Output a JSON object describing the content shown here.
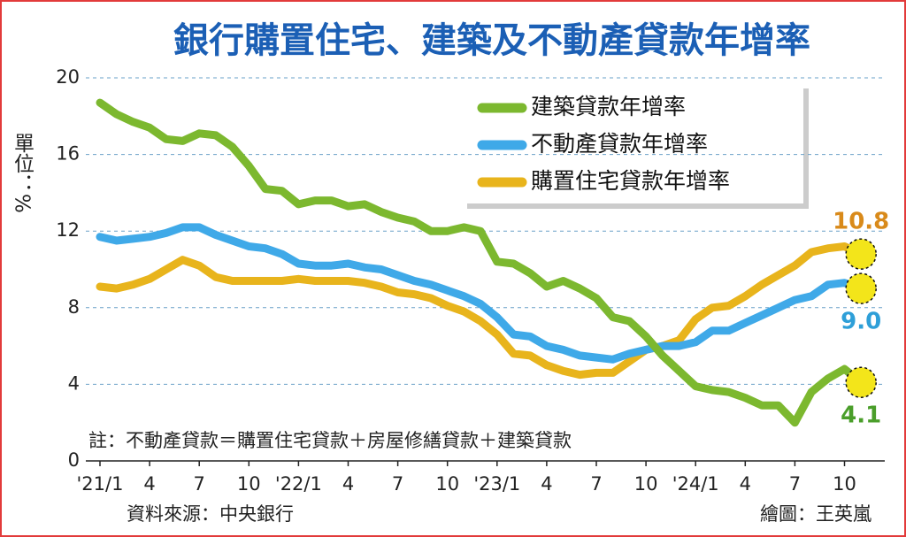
{
  "chart_data": {
    "type": "line",
    "title": "銀行購置住宅、建築及不動產貸款年增率",
    "y_label": "單位：%",
    "note": "註：不動產貸款＝購置住宅貸款＋房屋修繕貸款＋建築貸款",
    "source": "資料來源：中央銀行",
    "credit": "繪圖：王英嵐",
    "categories": [
      "'21/1",
      null,
      null,
      "4",
      null,
      null,
      "7",
      null,
      null,
      "10",
      null,
      null,
      "'22/1",
      null,
      null,
      "4",
      null,
      null,
      "7",
      null,
      null,
      "10",
      null,
      null,
      "'23/1",
      null,
      null,
      "4",
      null,
      null,
      "7",
      null,
      null,
      "10",
      null,
      null,
      "'24/1",
      null,
      null,
      "4",
      null,
      null,
      "7",
      null,
      null,
      "10",
      null
    ],
    "ylim": [
      0,
      20
    ],
    "yticks": [
      0,
      4,
      8,
      12,
      16,
      20
    ],
    "grid": true,
    "legend": "top-right",
    "series": [
      {
        "name": "建築貸款年增率",
        "color": "#7cb82f",
        "label_color": "#4a9e2a",
        "values": [
          18.7,
          18.1,
          17.7,
          17.4,
          16.8,
          16.7,
          17.1,
          17.0,
          16.4,
          15.4,
          14.2,
          14.1,
          13.4,
          13.6,
          13.6,
          13.3,
          13.4,
          13.0,
          12.7,
          12.5,
          12.0,
          12.0,
          12.2,
          12.0,
          10.4,
          10.3,
          9.8,
          9.1,
          9.4,
          9.0,
          8.5,
          7.5,
          7.3,
          6.5,
          5.5,
          4.7,
          3.9,
          3.7,
          3.6,
          3.3,
          2.9,
          2.9,
          2.0,
          3.6,
          4.3,
          4.8,
          4.1
        ],
        "value_labels": [
          null,
          null,
          null,
          null,
          null,
          null,
          null,
          null,
          null,
          null,
          null,
          null,
          null,
          null,
          null,
          null,
          null,
          null,
          null,
          null,
          null,
          null,
          null,
          null,
          null,
          null,
          null,
          null,
          null,
          null,
          null,
          null,
          null,
          null,
          null,
          null,
          null,
          null,
          null,
          null,
          null,
          null,
          null,
          null,
          null,
          null,
          "4.1"
        ]
      },
      {
        "name": "不動產貸款年增率",
        "color": "#3fa9e8",
        "label_color": "#2e9fd8",
        "values": [
          11.7,
          11.5,
          11.6,
          11.7,
          11.9,
          12.2,
          12.2,
          11.8,
          11.5,
          11.2,
          11.1,
          10.8,
          10.3,
          10.2,
          10.2,
          10.3,
          10.1,
          10.0,
          9.7,
          9.4,
          9.2,
          8.9,
          8.6,
          8.2,
          7.5,
          6.6,
          6.5,
          6.0,
          5.8,
          5.5,
          5.4,
          5.3,
          5.6,
          5.8,
          6.0,
          6.0,
          6.2,
          6.8,
          6.8,
          7.2,
          7.6,
          8.0,
          8.4,
          8.6,
          9.2,
          9.3,
          9.0
        ],
        "value_labels": [
          null,
          null,
          null,
          null,
          null,
          null,
          null,
          null,
          null,
          null,
          null,
          null,
          null,
          null,
          null,
          null,
          null,
          null,
          null,
          null,
          null,
          null,
          null,
          null,
          null,
          null,
          null,
          null,
          null,
          null,
          null,
          null,
          null,
          null,
          null,
          null,
          null,
          null,
          null,
          null,
          null,
          null,
          null,
          null,
          null,
          null,
          "9.0"
        ]
      },
      {
        "name": "購置住宅貸款年增率",
        "color": "#e8b41c",
        "label_color": "#d98a1a",
        "values": [
          9.1,
          9.0,
          9.2,
          9.5,
          10.0,
          10.5,
          10.2,
          9.6,
          9.4,
          9.4,
          9.4,
          9.4,
          9.5,
          9.4,
          9.4,
          9.4,
          9.3,
          9.1,
          8.8,
          8.7,
          8.5,
          8.1,
          7.8,
          7.3,
          6.6,
          5.6,
          5.5,
          5.0,
          4.7,
          4.5,
          4.6,
          4.6,
          5.2,
          5.8,
          6.0,
          6.3,
          7.4,
          8.0,
          8.1,
          8.6,
          9.2,
          9.7,
          10.2,
          10.9,
          11.1,
          11.2,
          10.8
        ],
        "value_labels": [
          null,
          null,
          null,
          null,
          null,
          null,
          null,
          null,
          null,
          null,
          null,
          null,
          null,
          null,
          null,
          null,
          null,
          null,
          null,
          null,
          null,
          null,
          null,
          null,
          null,
          null,
          null,
          null,
          null,
          null,
          null,
          null,
          null,
          null,
          null,
          null,
          null,
          null,
          null,
          null,
          null,
          null,
          null,
          null,
          null,
          null,
          "10.8"
        ]
      }
    ]
  }
}
